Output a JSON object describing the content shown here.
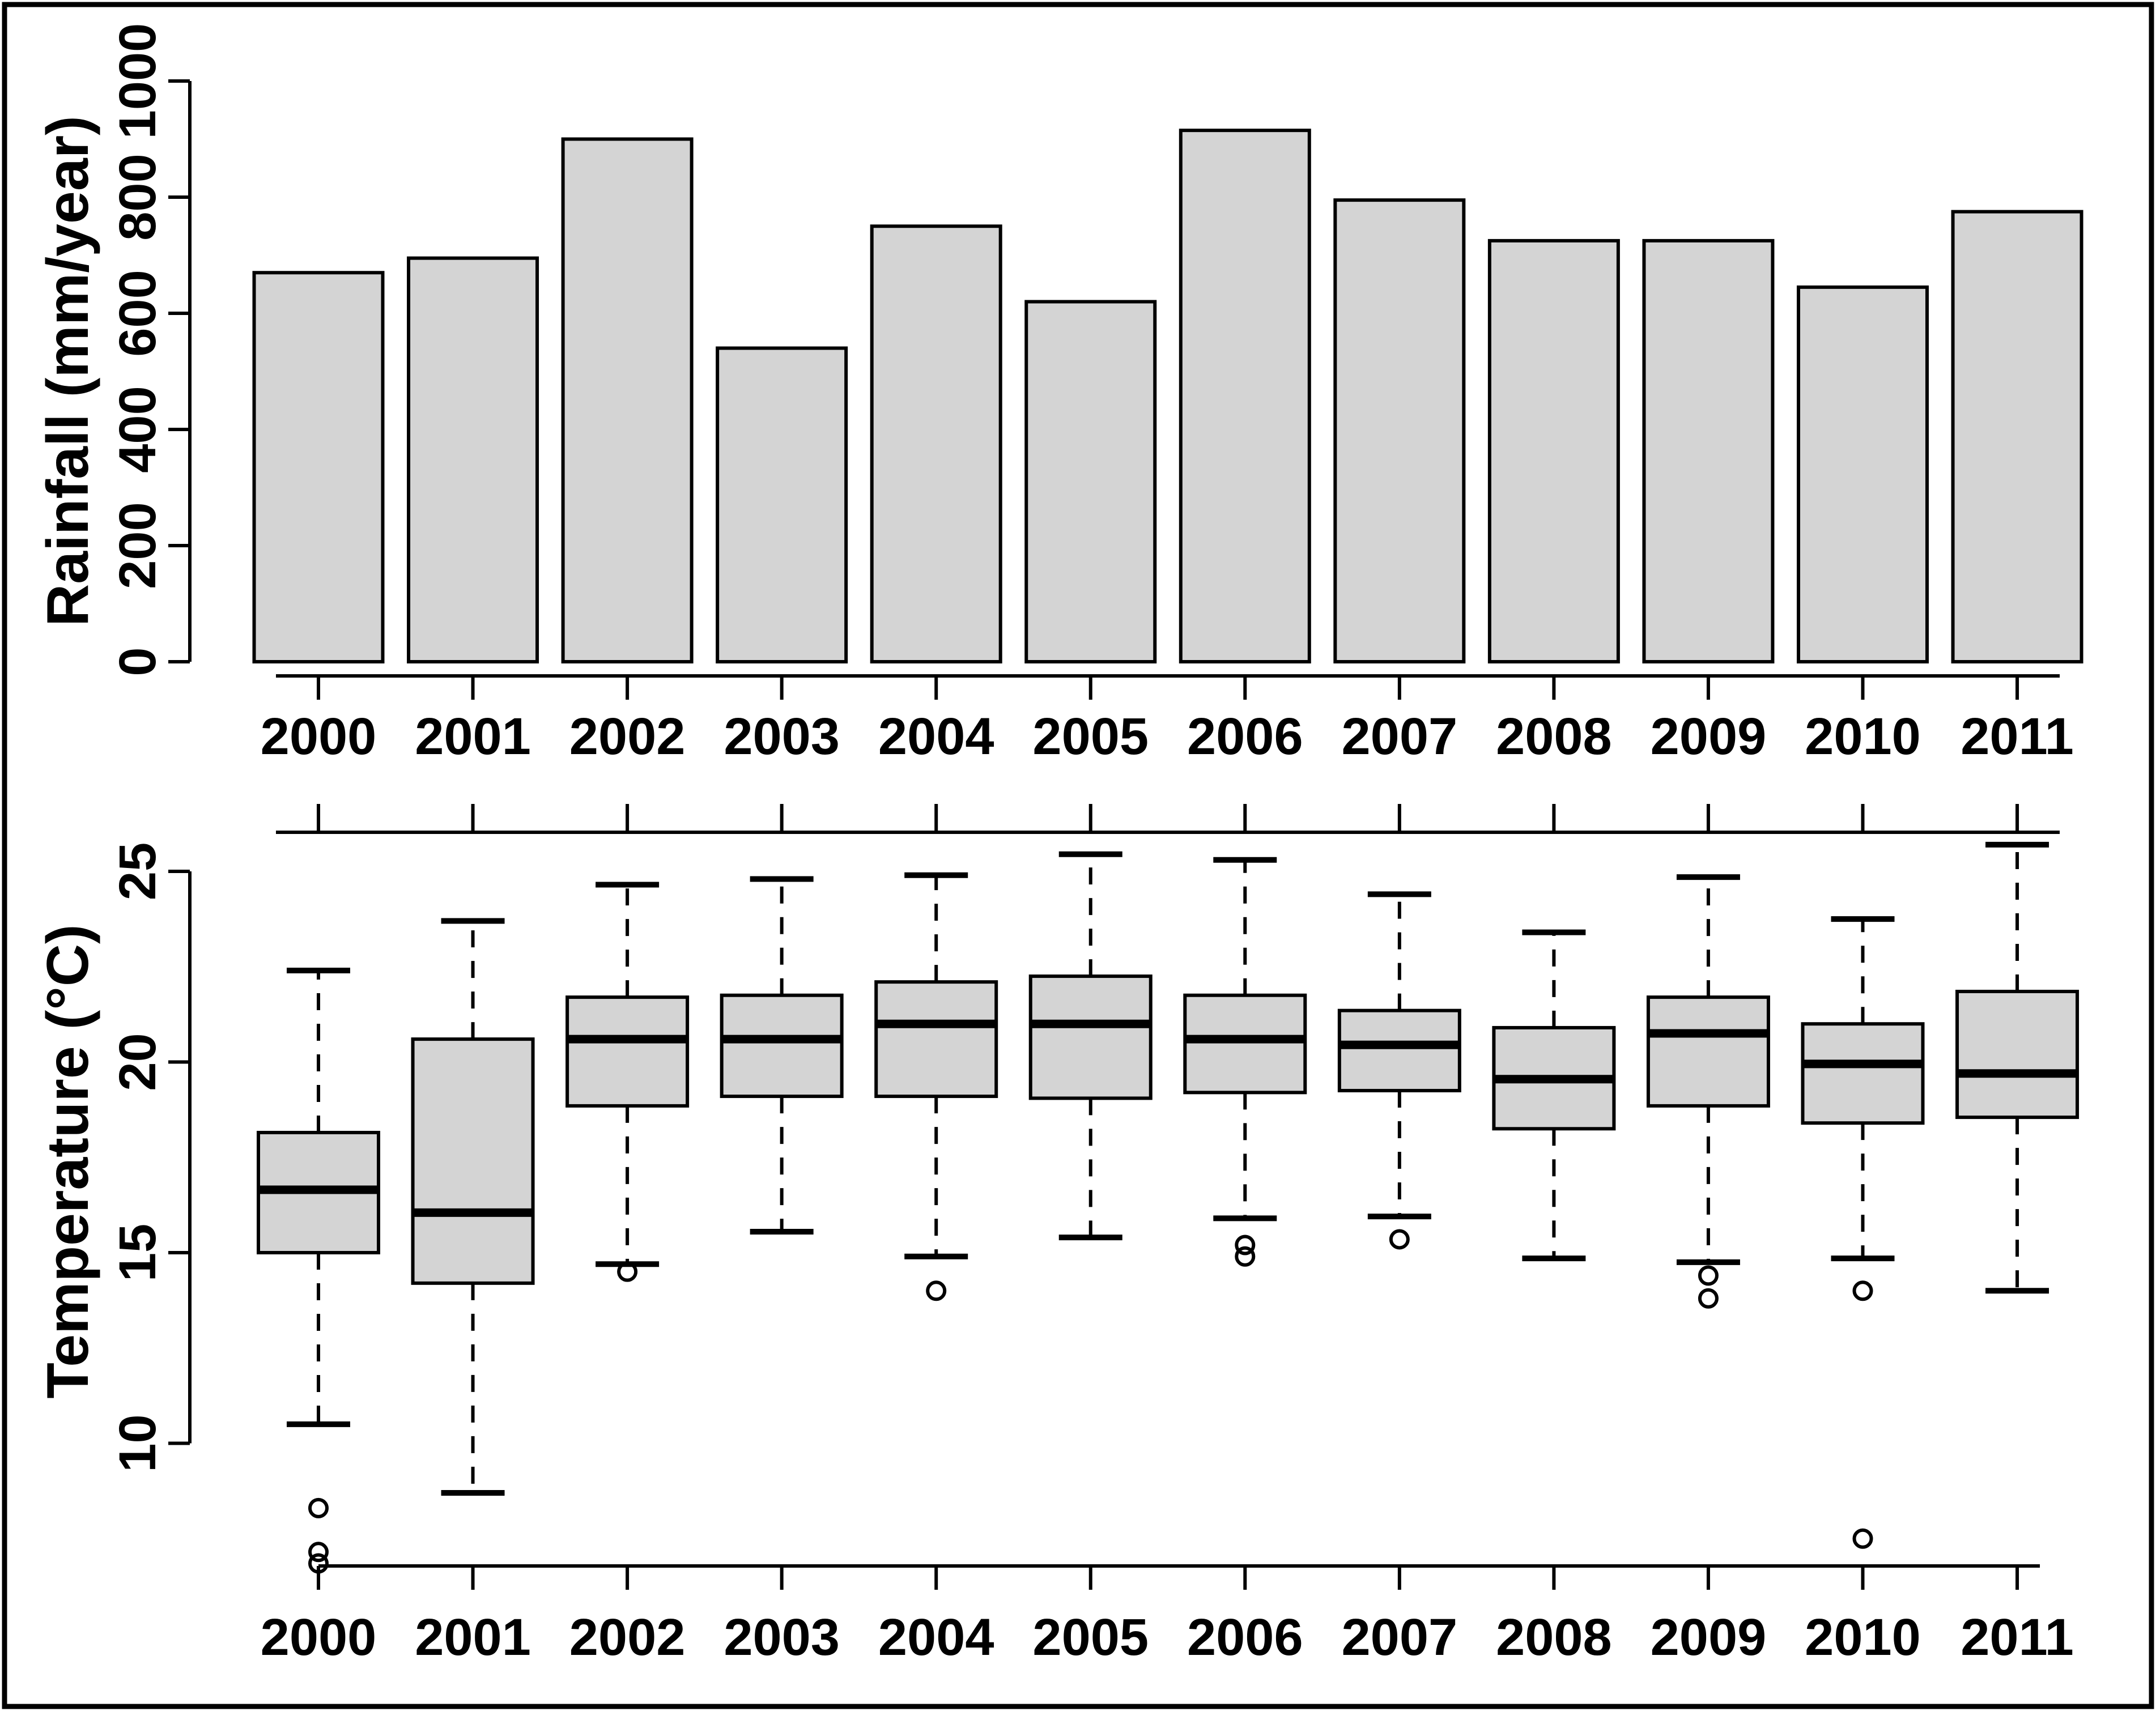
{
  "figure": {
    "background": "#ffffff",
    "foreground": "#000000",
    "box_fill": "#d4d4d4",
    "border_color": "#000000"
  },
  "chart_data": [
    {
      "type": "bar",
      "title": "",
      "xlabel": "",
      "ylabel": "Rainfall (mm/year)",
      "categories": [
        "2000",
        "2001",
        "2002",
        "2003",
        "2004",
        "2005",
        "2006",
        "2007",
        "2008",
        "2009",
        "2010",
        "2011"
      ],
      "values": [
        670,
        695,
        900,
        540,
        750,
        620,
        915,
        795,
        725,
        725,
        645,
        775
      ],
      "yticks": [
        0,
        200,
        400,
        600,
        800,
        1000
      ],
      "ylim": [
        0,
        1040
      ],
      "grid": false,
      "bar_fill": "#d4d4d4",
      "bar_border": "#000000"
    },
    {
      "type": "box",
      "title": "",
      "xlabel": "",
      "ylabel": "Temperature (°C)",
      "categories": [
        "2000",
        "2001",
        "2002",
        "2003",
        "2004",
        "2005",
        "2006",
        "2007",
        "2008",
        "2009",
        "2010",
        "2011"
      ],
      "yticks": [
        10,
        15,
        20,
        25
      ],
      "ylim": [
        6.3,
        26.0
      ],
      "grid": false,
      "box_fill": "#d4d4d4",
      "series": [
        {
          "year": "2000",
          "low": 10.5,
          "q1": 15.0,
          "median": 16.65,
          "q3": 18.15,
          "high": 22.4,
          "outliers": [
            8.3,
            7.15,
            6.85
          ]
        },
        {
          "year": "2001",
          "low": 8.7,
          "q1": 14.2,
          "median": 16.05,
          "q3": 20.6,
          "high": 23.7,
          "outliers": []
        },
        {
          "year": "2002",
          "low": 14.7,
          "q1": 18.85,
          "median": 20.6,
          "q3": 21.7,
          "high": 24.65,
          "outliers": [
            14.5
          ]
        },
        {
          "year": "2003",
          "low": 15.55,
          "q1": 19.1,
          "median": 20.6,
          "q3": 21.75,
          "high": 24.8,
          "outliers": []
        },
        {
          "year": "2004",
          "low": 14.9,
          "q1": 19.1,
          "median": 21.0,
          "q3": 22.1,
          "high": 24.9,
          "outliers": [
            14.0
          ]
        },
        {
          "year": "2005",
          "low": 15.4,
          "q1": 19.05,
          "median": 21.0,
          "q3": 22.25,
          "high": 25.45,
          "outliers": []
        },
        {
          "year": "2006",
          "low": 15.9,
          "q1": 19.2,
          "median": 20.6,
          "q3": 21.75,
          "high": 25.3,
          "outliers": [
            15.2,
            14.9
          ]
        },
        {
          "year": "2007",
          "low": 15.95,
          "q1": 19.25,
          "median": 20.45,
          "q3": 21.35,
          "high": 24.4,
          "outliers": [
            15.35
          ]
        },
        {
          "year": "2008",
          "low": 14.85,
          "q1": 18.25,
          "median": 19.55,
          "q3": 20.9,
          "high": 23.4,
          "outliers": []
        },
        {
          "year": "2009",
          "low": 14.75,
          "q1": 18.85,
          "median": 20.75,
          "q3": 21.7,
          "high": 24.85,
          "outliers": [
            14.4,
            13.8
          ]
        },
        {
          "year": "2010",
          "low": 14.85,
          "q1": 18.4,
          "median": 19.95,
          "q3": 21.0,
          "high": 23.75,
          "outliers": [
            14.0,
            7.5
          ]
        },
        {
          "year": "2011",
          "low": 14.0,
          "q1": 18.55,
          "median": 19.7,
          "q3": 21.85,
          "high": 25.7,
          "outliers": []
        }
      ]
    }
  ]
}
